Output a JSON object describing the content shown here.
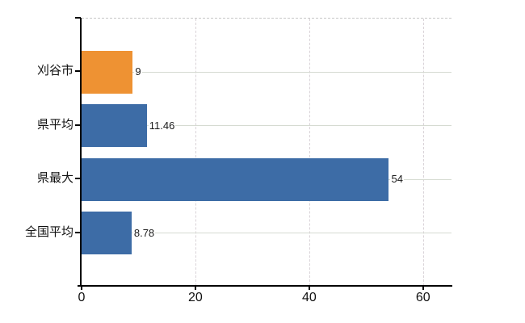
{
  "chart_data": {
    "type": "bar",
    "orientation": "horizontal",
    "title": "",
    "xlabel": "",
    "ylabel": "",
    "categories": [
      "刈谷市",
      "県平均",
      "県最大",
      "全国平均"
    ],
    "values": [
      9,
      11.46,
      54,
      8.78
    ],
    "value_labels": [
      "9",
      "11.46",
      "54",
      "8.78"
    ],
    "bar_colors": [
      "#ee9233",
      "#3d6ca6",
      "#3d6ca6",
      "#3d6ca6"
    ],
    "xlim": [
      0,
      65
    ],
    "xticks": [
      0,
      20,
      40,
      60
    ],
    "xtick_labels": [
      "0",
      "20",
      "40",
      "60"
    ],
    "grid": true,
    "legend": false
  },
  "colors": {
    "highlight_bar": "#ee9233",
    "default_bar": "#3d6ca6",
    "axis": "#000000",
    "horizontal_gridline": "#d5dad1",
    "vertical_gridline": "#d9d3d8",
    "plot_top_border": "#c8c8c8",
    "background": "#ffffff",
    "text": "#111111"
  }
}
